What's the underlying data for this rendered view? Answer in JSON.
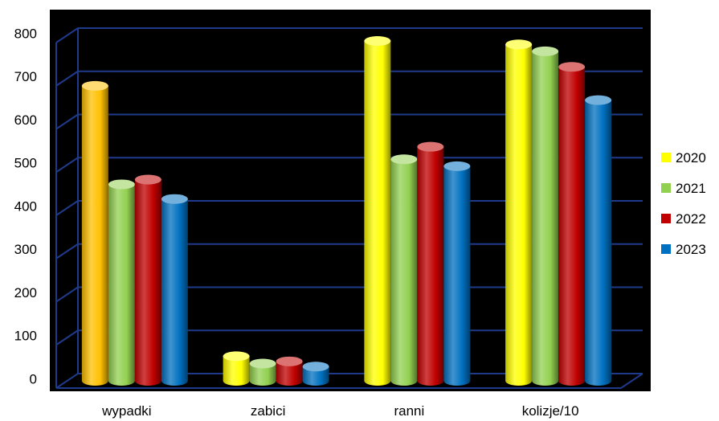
{
  "chart_data": {
    "type": "bar",
    "categories": [
      "wypadki",
      "zabici",
      "ranni",
      "kolizje/10"
    ],
    "series": [
      {
        "name": "2020",
        "values": [
          683,
          57,
          787,
          779
        ],
        "color": "#ffff00"
      },
      {
        "name": "2021",
        "values": [
          455,
          40,
          513,
          763
        ],
        "color": "#92d050"
      },
      {
        "name": "2022",
        "values": [
          466,
          45,
          542,
          727
        ],
        "color": "#c00000"
      },
      {
        "name": "2023",
        "values": [
          421,
          33,
          497,
          650
        ],
        "color": "#0070c0"
      }
    ],
    "highlight": {
      "series": 0,
      "category": 0,
      "color": "#ffc000"
    },
    "yticks": [
      0,
      100,
      200,
      300,
      400,
      500,
      600,
      700,
      800
    ],
    "ylim": [
      0,
      800
    ],
    "grid": true,
    "legend_position": "right",
    "plot_background": "#000000",
    "grid_color": "#1f3a8a"
  }
}
